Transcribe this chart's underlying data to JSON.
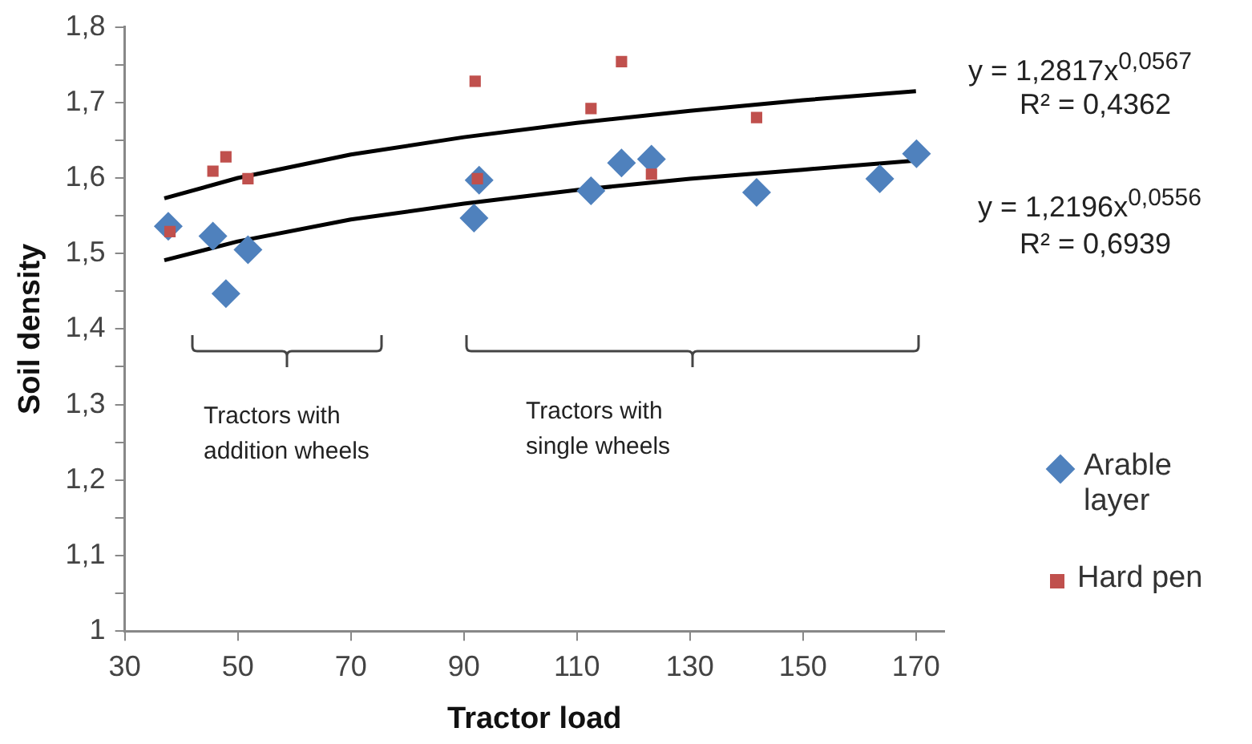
{
  "chart_data": {
    "type": "scatter",
    "xlabel": "Tractor load",
    "ylabel": "Soil density",
    "xlim": [
      30,
      175
    ],
    "xticks": [
      30,
      50,
      70,
      90,
      110,
      130,
      150,
      170
    ],
    "ylim": [
      1,
      1.8
    ],
    "yticks": [
      1,
      {
        "value": 1.05,
        "label": null
      },
      {
        "value": 1.1,
        "label": "1,1"
      },
      {
        "value": 1.15,
        "label": null
      },
      {
        "value": 1.2,
        "label": "1,2"
      },
      {
        "value": 1.25,
        "label": null
      },
      {
        "value": 1.3,
        "label": "1,3"
      },
      {
        "value": 1.35,
        "label": null
      },
      {
        "value": 1.4,
        "label": "1,4"
      },
      {
        "value": 1.45,
        "label": null
      },
      {
        "value": 1.5,
        "label": "1,5"
      },
      {
        "value": 1.55,
        "label": null
      },
      {
        "value": 1.6,
        "label": "1,6"
      },
      {
        "value": 1.65,
        "label": null
      },
      {
        "value": 1.7,
        "label": "1,7"
      },
      {
        "value": 1.75,
        "label": null
      },
      {
        "value": 1.8,
        "label": "1,8"
      }
    ],
    "grid": false,
    "legend": "right",
    "series": [
      {
        "name": "Arable layer",
        "marker": "diamond",
        "color": "#4f81bd",
        "x": [
          37.7,
          45.6,
          47.9,
          51.8,
          92.7,
          91.8,
          112.5,
          117.9,
          123.2,
          141.8,
          163.6,
          170.1
        ],
        "values": [
          1.536,
          1.523,
          1.447,
          1.505,
          1.597,
          1.547,
          1.583,
          1.62,
          1.625,
          1.581,
          1.599,
          1.632
        ]
      },
      {
        "name": "Hard pen",
        "marker": "square",
        "color": "#c0504d",
        "x": [
          38,
          45.6,
          47.9,
          51.8,
          92,
          92.4,
          112.5,
          117.9,
          123.2,
          141.8
        ],
        "values": [
          1.529,
          1.609,
          1.628,
          1.599,
          1.728,
          1.599,
          1.692,
          1.754,
          1.605,
          1.68
        ]
      },
      {
        "type": "line",
        "marker": "none",
        "color": "#000000",
        "x": [
          37,
          50,
          70,
          90,
          110,
          130,
          150,
          170
        ],
        "values": [
          1.573,
          1.6,
          1.631,
          1.654,
          1.673,
          1.689,
          1.703,
          1.715
        ]
      },
      {
        "type": "line",
        "marker": "none",
        "color": "#000000",
        "x": [
          37,
          50,
          70,
          90,
          110,
          130,
          150,
          170
        ],
        "values": [
          1.491,
          1.516,
          1.545,
          1.566,
          1.584,
          1.599,
          1.611,
          1.623
        ]
      }
    ],
    "annotations": [
      "y = 1,2817x$^{0,0567}$",
      "R² = 0,4362",
      "y = 1,2196x$^{0,0556}$",
      "R² = 0,6939",
      "Tractors with addition wheels",
      "Tractors with single wheels"
    ]
  }
}
